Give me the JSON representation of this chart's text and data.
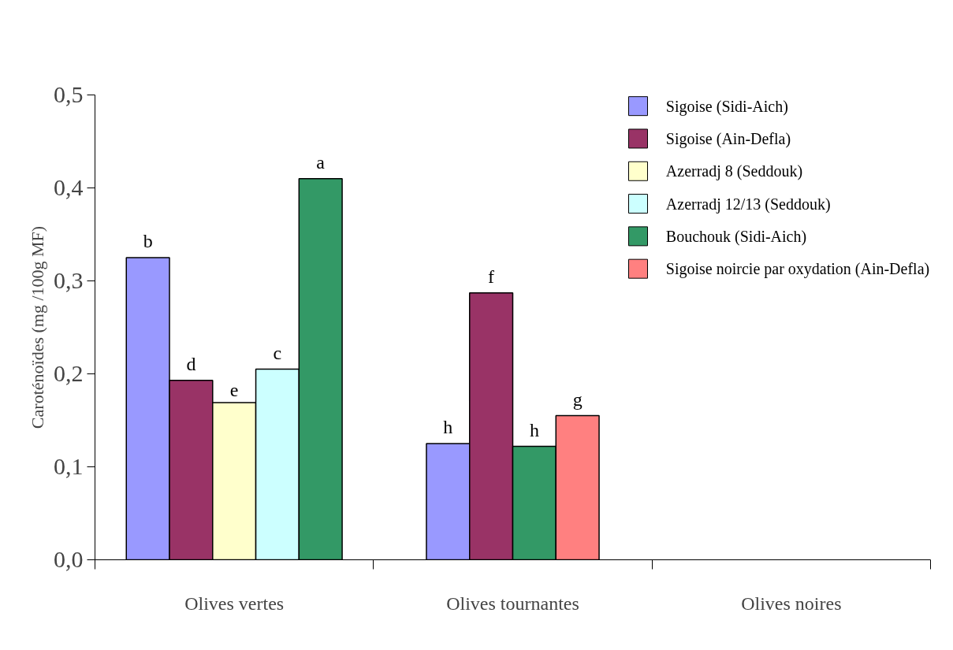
{
  "chart_data": {
    "type": "bar",
    "ylabel": "Caroténoïdes (mg /100g MF)",
    "categories": [
      "Olives vertes",
      "Olives tournantes",
      "Olives noires"
    ],
    "ylim": [
      0,
      0.5
    ],
    "yticks": [
      {
        "value": 0,
        "label": "0,0"
      },
      {
        "value": 0.1,
        "label": "0,1"
      },
      {
        "value": 0.2,
        "label": "0,2"
      },
      {
        "value": 0.3,
        "label": "0,3"
      },
      {
        "value": 0.4,
        "label": "0,4"
      },
      {
        "value": 0.5,
        "label": "0,5"
      }
    ],
    "grid": false,
    "legend": "top right",
    "series": [
      {
        "name": "Sigoise (Sidi-Aich)",
        "color": "#9999ff",
        "values": [
          0.325,
          0.125,
          null
        ],
        "value_labels": [
          "b",
          "h",
          null
        ]
      },
      {
        "name": "Sigoise (Ain-Defla)",
        "color": "#993366",
        "values": [
          0.193,
          0.287,
          null
        ],
        "value_labels": [
          "d",
          "f",
          null
        ]
      },
      {
        "name": "Azerradj 8 (Seddouk)",
        "color": "#ffffcc",
        "values": [
          0.169,
          null,
          null
        ],
        "value_labels": [
          "e",
          null,
          null
        ]
      },
      {
        "name": "Azerradj 12/13 (Seddouk)",
        "color": "#ccffff",
        "values": [
          0.205,
          null,
          null
        ],
        "value_labels": [
          "c",
          null,
          null
        ]
      },
      {
        "name": "Bouchouk (Sidi-Aich)",
        "color": "#339966",
        "values": [
          0.41,
          0.122,
          null
        ],
        "value_labels": [
          "a",
          "h",
          null
        ]
      },
      {
        "name": "Sigoise noircie par oxydation (Ain-Defla)",
        "color": "#ff8080",
        "values": [
          null,
          0.155,
          null
        ],
        "value_labels": [
          null,
          "g",
          null
        ]
      }
    ]
  }
}
